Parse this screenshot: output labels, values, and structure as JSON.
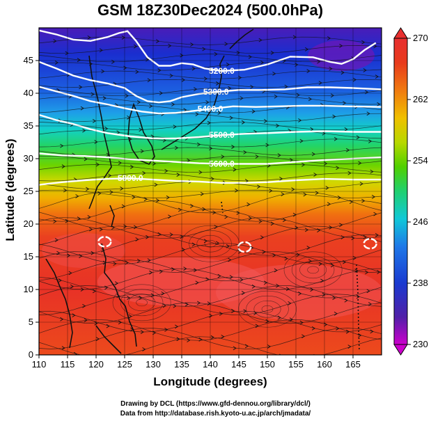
{
  "chart_data": {
    "type": "heatmap",
    "title": "GSM 18Z30Dec2024 (500.0hPa)",
    "xlabel": "Longitude (degrees)",
    "ylabel": "Latitude  (degrees)",
    "xlim": [
      110,
      170
    ],
    "ylim": [
      0,
      50
    ],
    "x_ticks": [
      "110",
      "115",
      "120",
      "125",
      "130",
      "135",
      "140",
      "145",
      "150",
      "155",
      "160",
      "165"
    ],
    "y_ticks": [
      "0",
      "5",
      "10",
      "15",
      "20",
      "25",
      "30",
      "35",
      "40",
      "45"
    ],
    "colorbar": {
      "range": [
        230,
        270
      ],
      "ticks": [
        "230",
        "238",
        "246",
        "254",
        "262",
        "270"
      ],
      "colors": [
        "#cc00cc",
        "#5020a8",
        "#1a3ad0",
        "#1e78e8",
        "#10c8d8",
        "#20d070",
        "#50d000",
        "#b8d800",
        "#f0c000",
        "#f07a10",
        "#e83a1c",
        "#e83030"
      ]
    },
    "contours": [
      {
        "label": "5200.0",
        "points": [
          [
            110,
            49.6
          ],
          [
            113,
            49
          ],
          [
            116,
            48.2
          ],
          [
            119,
            48
          ],
          [
            122,
            48.6
          ],
          [
            124,
            49.2
          ],
          [
            125.5,
            49.5
          ],
          [
            127,
            48
          ],
          [
            129,
            45.5
          ],
          [
            131,
            44.2
          ],
          [
            133,
            44.2
          ],
          [
            135,
            44.6
          ],
          [
            137,
            44.4
          ],
          [
            139,
            43.8
          ],
          [
            142,
            43.4
          ],
          [
            146,
            43.6
          ],
          [
            150,
            44.4
          ],
          [
            154,
            45.6
          ],
          [
            158,
            45.5
          ],
          [
            161,
            44.8
          ],
          [
            163,
            44.5
          ],
          [
            165,
            45.2
          ],
          [
            167,
            46.6
          ],
          [
            169,
            47.7
          ]
        ]
      },
      {
        "label": "5300.0",
        "points": [
          [
            110,
            44.8
          ],
          [
            113,
            43.8
          ],
          [
            116,
            42.7
          ],
          [
            119,
            42
          ],
          [
            122,
            41.5
          ],
          [
            125,
            40.8
          ],
          [
            127,
            39.6
          ],
          [
            129,
            38.8
          ],
          [
            131,
            38.6
          ],
          [
            133,
            38.8
          ],
          [
            135,
            39.4
          ],
          [
            138,
            39.9
          ],
          [
            141,
            40.2
          ],
          [
            145,
            40.5
          ],
          [
            149,
            40.5
          ],
          [
            153,
            40.6
          ],
          [
            157,
            40.9
          ],
          [
            161,
            40.9
          ],
          [
            165,
            40.8
          ],
          [
            170,
            40.6
          ]
        ]
      },
      {
        "label": "5400.0",
        "points": [
          [
            110,
            41
          ],
          [
            113,
            40.3
          ],
          [
            116,
            39.6
          ],
          [
            119,
            38.8
          ],
          [
            122,
            38.3
          ],
          [
            125,
            37.7
          ],
          [
            128,
            37.2
          ],
          [
            131,
            36.9
          ],
          [
            134,
            37
          ],
          [
            137,
            37.3
          ],
          [
            140,
            37.6
          ],
          [
            144,
            38
          ],
          [
            148,
            37.9
          ],
          [
            152,
            38
          ],
          [
            156,
            38.1
          ],
          [
            160,
            38.1
          ],
          [
            164,
            38
          ],
          [
            170,
            37.9
          ]
        ]
      },
      {
        "label": "5500.0",
        "points": [
          [
            110,
            36.7
          ],
          [
            113,
            35.9
          ],
          [
            116,
            35.3
          ],
          [
            119,
            34.5
          ],
          [
            122,
            33.9
          ],
          [
            126,
            33.4
          ],
          [
            130,
            33.1
          ],
          [
            134,
            33.1
          ],
          [
            138,
            33.3
          ],
          [
            142,
            33.6
          ],
          [
            146,
            33.8
          ],
          [
            150,
            33.9
          ],
          [
            155,
            34.1
          ],
          [
            160,
            34.2
          ],
          [
            165,
            34.1
          ],
          [
            170,
            34.1
          ]
        ]
      },
      {
        "label": "5600.0",
        "points": [
          [
            110,
            30.8
          ],
          [
            114,
            30.5
          ],
          [
            118,
            30.4
          ],
          [
            122,
            30.2
          ],
          [
            126,
            29.9
          ],
          [
            130,
            29.7
          ],
          [
            134,
            29.5
          ],
          [
            138,
            29.3
          ],
          [
            142,
            29.2
          ],
          [
            146,
            29.2
          ],
          [
            150,
            29.2
          ],
          [
            155,
            29.5
          ],
          [
            160,
            29.8
          ],
          [
            165,
            30
          ],
          [
            170,
            30.2
          ]
        ]
      },
      {
        "label": "5800.0",
        "points": [
          [
            110,
            26
          ],
          [
            114,
            26.4
          ],
          [
            118,
            26.7
          ],
          [
            122,
            26.9
          ],
          [
            126,
            27
          ],
          [
            130,
            26.8
          ],
          [
            134,
            26.6
          ],
          [
            138,
            26.5
          ],
          [
            142,
            26.3
          ],
          [
            146,
            26.3
          ],
          [
            150,
            26.4
          ],
          [
            155,
            26.7
          ],
          [
            160,
            26.9
          ],
          [
            165,
            26.8
          ],
          [
            170,
            26.8
          ]
        ]
      }
    ],
    "highs": [
      {
        "lon": 121.5,
        "lat": 17.3
      },
      {
        "lon": 146,
        "lat": 16.5
      },
      {
        "lon": 168,
        "lat": 17
      }
    ],
    "grid": true
  },
  "credits": {
    "line1": "Drawing by DCL (https://www.gfd-dennou.org/library/dcl/)",
    "line2": "Data from http://database.rish.kyoto-u.ac.jp/arch/jmadata/"
  }
}
